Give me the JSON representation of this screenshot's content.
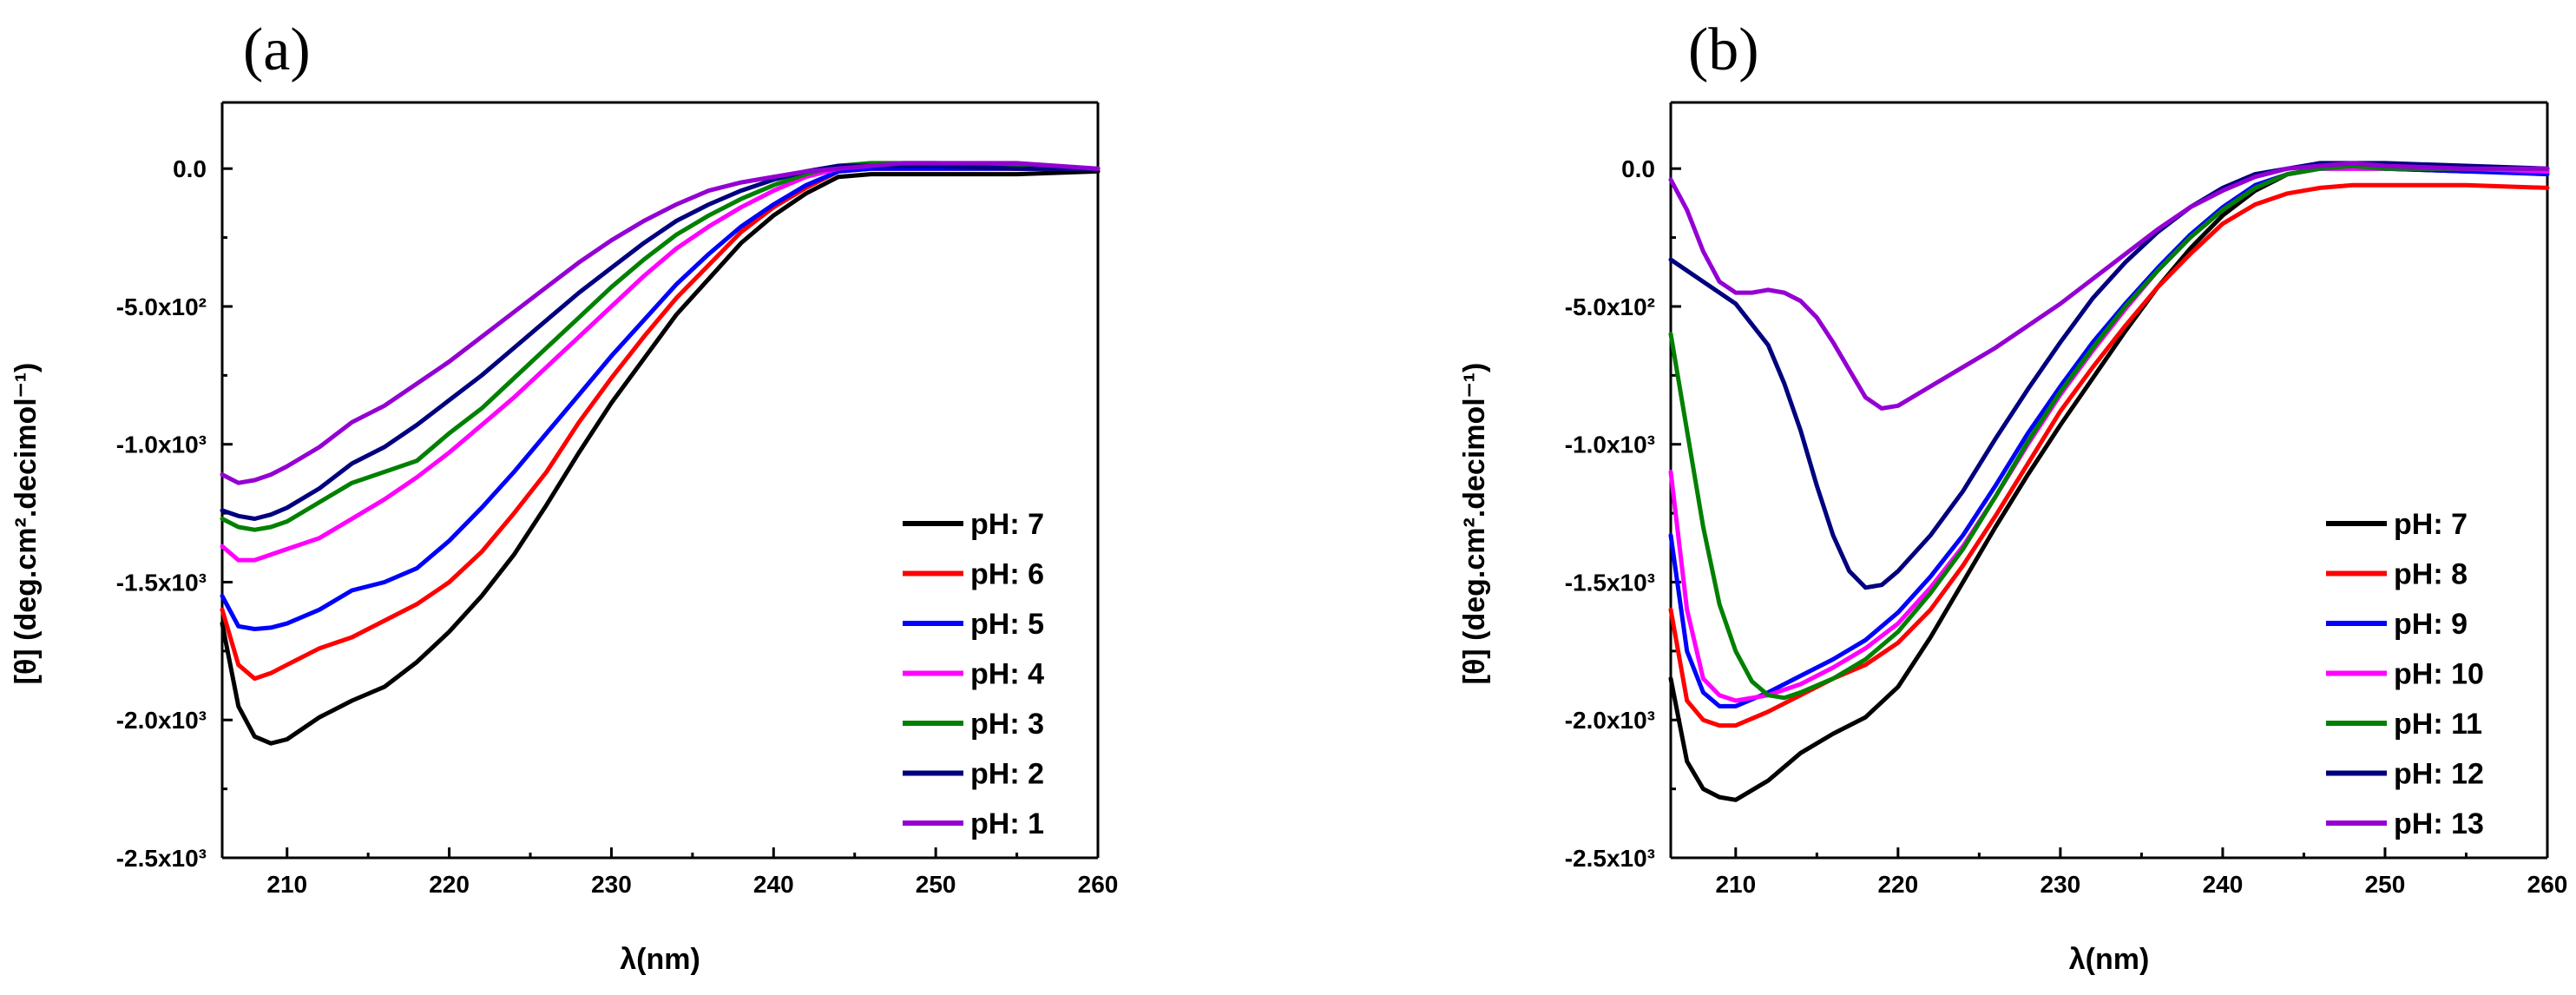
{
  "chart_data": [
    {
      "panel_label": "(a)",
      "type": "line",
      "xlabel": "λ(nm)",
      "ylabel": "[θ] (deg.cm².decimol⁻¹)",
      "xlim": [
        206,
        260
      ],
      "ylim": [
        -2500,
        240
      ],
      "x_ticks": [
        {
          "value": 210,
          "label": "210"
        },
        {
          "value": 220,
          "label": "220"
        },
        {
          "value": 230,
          "label": "230"
        },
        {
          "value": 240,
          "label": "240"
        },
        {
          "value": 250,
          "label": "250"
        },
        {
          "value": 260,
          "label": "260"
        }
      ],
      "y_ticks": [
        {
          "value": 0,
          "label": "0.0"
        },
        {
          "value": -500,
          "label": "-5.0x10²"
        },
        {
          "value": -1000,
          "label": "-1.0x10³"
        },
        {
          "value": -1500,
          "label": "-1.5x10³"
        },
        {
          "value": -2000,
          "label": "-2.0x10³"
        },
        {
          "value": -2500,
          "label": "-2.5x10³"
        }
      ],
      "legend_position": "bottom-right",
      "grid": false,
      "series": [
        {
          "name": "pH: 7",
          "color": "#000000",
          "x": [
            206,
            207,
            208,
            209,
            210,
            212,
            214,
            216,
            218,
            220,
            222,
            224,
            226,
            228,
            230,
            232,
            234,
            236,
            238,
            240,
            242,
            244,
            246,
            248,
            250,
            255,
            260
          ],
          "y": [
            -1650,
            -1950,
            -2060,
            -2085,
            -2070,
            -1990,
            -1930,
            -1880,
            -1790,
            -1680,
            -1550,
            -1400,
            -1220,
            -1030,
            -850,
            -690,
            -530,
            -400,
            -270,
            -170,
            -90,
            -30,
            -20,
            -20,
            -20,
            -20,
            -10
          ]
        },
        {
          "name": "pH: 6",
          "color": "#ff0000",
          "x": [
            206,
            207,
            208,
            209,
            210,
            212,
            214,
            216,
            218,
            220,
            222,
            224,
            226,
            228,
            230,
            232,
            234,
            236,
            238,
            240,
            242,
            244,
            246,
            248,
            250,
            255,
            260
          ],
          "y": [
            -1600,
            -1800,
            -1850,
            -1830,
            -1800,
            -1740,
            -1700,
            -1640,
            -1580,
            -1500,
            -1390,
            -1250,
            -1100,
            -920,
            -760,
            -610,
            -470,
            -350,
            -230,
            -140,
            -70,
            -10,
            0,
            0,
            0,
            0,
            0
          ]
        },
        {
          "name": "pH: 5",
          "color": "#0000ff",
          "x": [
            206,
            207,
            208,
            209,
            210,
            212,
            214,
            216,
            218,
            220,
            222,
            224,
            226,
            228,
            230,
            232,
            234,
            236,
            238,
            240,
            242,
            244,
            246,
            248,
            250,
            255,
            260
          ],
          "y": [
            -1550,
            -1660,
            -1670,
            -1665,
            -1650,
            -1600,
            -1530,
            -1500,
            -1450,
            -1350,
            -1230,
            -1100,
            -960,
            -820,
            -680,
            -550,
            -420,
            -310,
            -210,
            -130,
            -60,
            -10,
            0,
            0,
            0,
            0,
            0
          ]
        },
        {
          "name": "pH: 4",
          "color": "#ff00ff",
          "x": [
            206,
            207,
            208,
            209,
            210,
            212,
            214,
            216,
            218,
            220,
            222,
            224,
            226,
            228,
            230,
            232,
            234,
            236,
            238,
            240,
            242,
            244,
            246,
            248,
            250,
            255,
            260
          ],
          "y": [
            -1370,
            -1420,
            -1420,
            -1400,
            -1380,
            -1340,
            -1270,
            -1200,
            -1120,
            -1030,
            -930,
            -830,
            -720,
            -610,
            -500,
            -390,
            -290,
            -210,
            -140,
            -80,
            -30,
            0,
            10,
            10,
            10,
            10,
            0
          ]
        },
        {
          "name": "pH: 3",
          "color": "#008000",
          "x": [
            206,
            207,
            208,
            209,
            210,
            212,
            214,
            216,
            218,
            220,
            222,
            224,
            226,
            228,
            230,
            232,
            234,
            236,
            238,
            240,
            242,
            244,
            246,
            248,
            250,
            255,
            260
          ],
          "y": [
            -1270,
            -1300,
            -1310,
            -1300,
            -1280,
            -1210,
            -1140,
            -1100,
            -1060,
            -960,
            -870,
            -760,
            -650,
            -540,
            -430,
            -330,
            -240,
            -170,
            -110,
            -60,
            -20,
            10,
            20,
            20,
            20,
            10,
            0
          ]
        },
        {
          "name": "pH: 2",
          "color": "#00007f",
          "x": [
            206,
            207,
            208,
            209,
            210,
            212,
            214,
            216,
            218,
            220,
            222,
            224,
            226,
            228,
            230,
            232,
            234,
            236,
            238,
            240,
            242,
            244,
            246,
            248,
            250,
            255,
            260
          ],
          "y": [
            -1240,
            -1260,
            -1270,
            -1255,
            -1230,
            -1160,
            -1070,
            -1010,
            -930,
            -840,
            -750,
            -650,
            -550,
            -450,
            -360,
            -270,
            -190,
            -130,
            -80,
            -40,
            -10,
            10,
            10,
            10,
            10,
            0,
            0
          ]
        },
        {
          "name": "pH: 1",
          "color": "#9400d3",
          "x": [
            206,
            207,
            208,
            209,
            210,
            212,
            214,
            216,
            218,
            220,
            222,
            224,
            226,
            228,
            230,
            232,
            234,
            236,
            238,
            240,
            242,
            244,
            246,
            248,
            250,
            255,
            260
          ],
          "y": [
            -1110,
            -1140,
            -1130,
            -1110,
            -1080,
            -1010,
            -920,
            -860,
            -780,
            -700,
            -610,
            -520,
            -430,
            -340,
            -260,
            -190,
            -130,
            -80,
            -50,
            -30,
            -10,
            0,
            10,
            20,
            20,
            20,
            0
          ]
        }
      ]
    },
    {
      "panel_label": "(b)",
      "type": "line",
      "xlabel": "λ(nm)",
      "ylabel": "[θ] (deg.cm².decimol⁻¹)",
      "xlim": [
        206,
        260
      ],
      "ylim": [
        -2500,
        240
      ],
      "x_ticks": [
        {
          "value": 210,
          "label": "210"
        },
        {
          "value": 220,
          "label": "220"
        },
        {
          "value": 230,
          "label": "230"
        },
        {
          "value": 240,
          "label": "240"
        },
        {
          "value": 250,
          "label": "250"
        },
        {
          "value": 260,
          "label": "260"
        }
      ],
      "y_ticks": [
        {
          "value": 0,
          "label": "0.0"
        },
        {
          "value": -500,
          "label": "-5.0x10²"
        },
        {
          "value": -1000,
          "label": "-1.0x10³"
        },
        {
          "value": -1500,
          "label": "-1.5x10³"
        },
        {
          "value": -2000,
          "label": "-2.0x10³"
        },
        {
          "value": -2500,
          "label": "-2.5x10³"
        }
      ],
      "legend_position": "bottom-right",
      "grid": false,
      "series": [
        {
          "name": "pH: 7",
          "color": "#000000",
          "x": [
            206,
            207,
            208,
            209,
            210,
            212,
            214,
            216,
            218,
            220,
            222,
            224,
            226,
            228,
            230,
            232,
            234,
            236,
            238,
            240,
            242,
            244,
            246,
            248,
            250,
            255,
            260
          ],
          "y": [
            -1850,
            -2150,
            -2250,
            -2280,
            -2290,
            -2220,
            -2120,
            -2050,
            -1990,
            -1880,
            -1700,
            -1500,
            -1300,
            -1110,
            -930,
            -760,
            -590,
            -430,
            -290,
            -170,
            -80,
            -20,
            0,
            10,
            0,
            -10,
            -10
          ]
        },
        {
          "name": "pH: 8",
          "color": "#ff0000",
          "x": [
            206,
            207,
            208,
            209,
            210,
            212,
            214,
            216,
            218,
            220,
            222,
            224,
            226,
            228,
            230,
            232,
            234,
            236,
            238,
            240,
            242,
            244,
            246,
            248,
            250,
            255,
            260
          ],
          "y": [
            -1600,
            -1930,
            -2000,
            -2020,
            -2020,
            -1970,
            -1910,
            -1850,
            -1800,
            -1720,
            -1600,
            -1440,
            -1260,
            -1070,
            -880,
            -720,
            -570,
            -430,
            -310,
            -200,
            -130,
            -90,
            -70,
            -60,
            -60,
            -60,
            -70
          ]
        },
        {
          "name": "pH: 9",
          "color": "#0000ff",
          "x": [
            206,
            207,
            208,
            209,
            210,
            212,
            214,
            216,
            218,
            220,
            222,
            224,
            226,
            228,
            230,
            232,
            234,
            236,
            238,
            240,
            242,
            244,
            246,
            248,
            250,
            255,
            260
          ],
          "y": [
            -1330,
            -1750,
            -1900,
            -1950,
            -1950,
            -1900,
            -1840,
            -1780,
            -1710,
            -1610,
            -1480,
            -1330,
            -1150,
            -960,
            -790,
            -630,
            -490,
            -360,
            -240,
            -140,
            -60,
            -20,
            0,
            0,
            0,
            -10,
            -20
          ]
        },
        {
          "name": "pH: 10",
          "color": "#ff00ff",
          "x": [
            206,
            207,
            208,
            209,
            210,
            212,
            214,
            216,
            218,
            220,
            222,
            224,
            226,
            228,
            230,
            232,
            234,
            236,
            238,
            240,
            242,
            244,
            246,
            248,
            250,
            255,
            260
          ],
          "y": [
            -1100,
            -1600,
            -1850,
            -1910,
            -1930,
            -1910,
            -1870,
            -1810,
            -1740,
            -1650,
            -1520,
            -1370,
            -1190,
            -1000,
            -820,
            -660,
            -510,
            -370,
            -250,
            -150,
            -70,
            -20,
            0,
            0,
            0,
            0,
            -10
          ]
        },
        {
          "name": "pH: 11",
          "color": "#008000",
          "x": [
            206,
            207,
            208,
            209,
            210,
            211,
            212,
            213,
            214,
            216,
            218,
            220,
            222,
            224,
            226,
            228,
            230,
            232,
            234,
            236,
            238,
            240,
            242,
            244,
            246,
            248,
            250,
            255,
            260
          ],
          "y": [
            -600,
            -950,
            -1300,
            -1580,
            -1750,
            -1860,
            -1910,
            -1920,
            -1900,
            -1850,
            -1780,
            -1680,
            -1540,
            -1380,
            -1190,
            -990,
            -810,
            -650,
            -500,
            -370,
            -250,
            -150,
            -70,
            -20,
            0,
            10,
            0,
            0,
            0
          ]
        },
        {
          "name": "pH: 12",
          "color": "#00007f",
          "x": [
            206,
            208,
            210,
            212,
            213,
            214,
            215,
            216,
            217,
            218,
            219,
            220,
            222,
            224,
            226,
            228,
            230,
            232,
            234,
            236,
            238,
            240,
            242,
            244,
            246,
            248,
            250,
            255,
            260
          ],
          "y": [
            -330,
            -410,
            -490,
            -640,
            -780,
            -950,
            -1150,
            -1330,
            -1460,
            -1520,
            -1510,
            -1460,
            -1330,
            -1170,
            -980,
            -800,
            -630,
            -470,
            -340,
            -230,
            -140,
            -70,
            -20,
            0,
            20,
            20,
            20,
            10,
            0
          ]
        },
        {
          "name": "pH: 13",
          "color": "#9400d3",
          "x": [
            206,
            207,
            208,
            209,
            210,
            211,
            212,
            213,
            214,
            215,
            216,
            217,
            218,
            219,
            220,
            222,
            224,
            226,
            228,
            230,
            232,
            234,
            236,
            238,
            240,
            242,
            244,
            246,
            248,
            250,
            255,
            260
          ],
          "y": [
            -40,
            -150,
            -300,
            -410,
            -450,
            -450,
            -440,
            -450,
            -480,
            -540,
            -630,
            -730,
            -830,
            -870,
            -860,
            -790,
            -720,
            -650,
            -570,
            -490,
            -400,
            -310,
            -220,
            -140,
            -80,
            -30,
            0,
            10,
            20,
            10,
            0,
            0
          ]
        }
      ]
    }
  ]
}
